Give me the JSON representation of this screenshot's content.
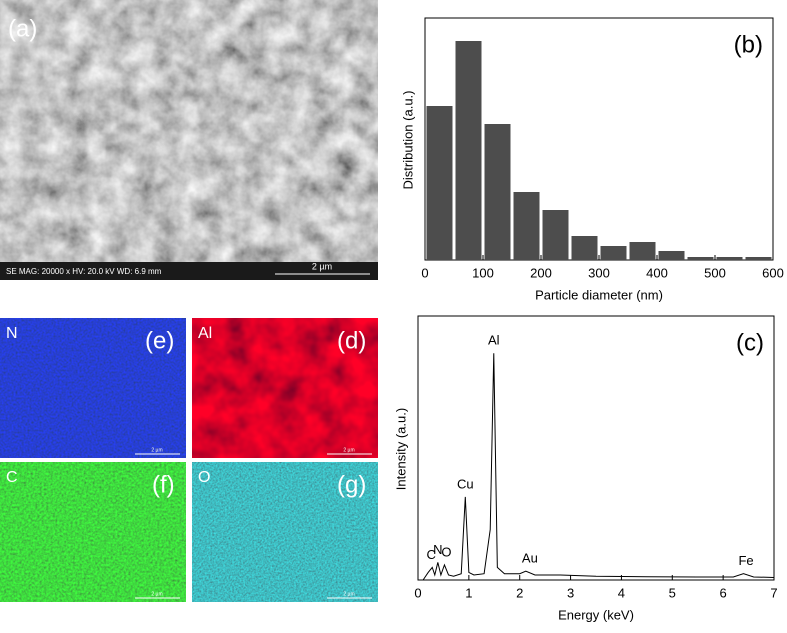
{
  "panels": [
    {
      "label": "(a)",
      "info": "SE  MAG: 20000 x  HV: 20.0 kV  WD: 6.9 mm",
      "scale": "2 µm"
    },
    {
      "label": "(e)",
      "element": "N",
      "scale": "2 µm"
    },
    {
      "label": "(d)",
      "element": "Al",
      "scale": "2 µm"
    },
    {
      "label": "(f)",
      "element": "C",
      "scale": "2 µm"
    },
    {
      "label": "(g)",
      "element": "O",
      "scale": "2 µm"
    }
  ],
  "chart_data": [
    {
      "type": "histogram",
      "panel_label": "(b)",
      "x_label": "Particle diameter (nm)",
      "y_label": "Distribution (a.u.)",
      "bins": [
        0,
        50,
        100,
        150,
        200,
        250,
        300,
        350,
        400,
        450,
        500,
        550,
        600
      ],
      "values": [
        154,
        219,
        136,
        68,
        50,
        24,
        14,
        18,
        9,
        3,
        3,
        3
      ],
      "color": "#4d4d4d",
      "xlim": [
        0,
        600
      ],
      "xticks": [
        0,
        100,
        200,
        300,
        400,
        500,
        600
      ],
      "ylim": [
        0,
        240
      ]
    },
    {
      "type": "line",
      "panel_label": "(c)",
      "x_label": "Energy (keV)",
      "y_label": "Intensity (a.u.)",
      "x": [
        0.1,
        0.2,
        0.28,
        0.33,
        0.39,
        0.45,
        0.52,
        0.6,
        0.7,
        0.85,
        0.93,
        1.0,
        1.1,
        1.3,
        1.42,
        1.49,
        1.56,
        1.7,
        2.0,
        2.12,
        2.3,
        2.8,
        3.5,
        4.5,
        5.5,
        6.2,
        6.4,
        6.6,
        7.0
      ],
      "values": [
        0,
        3,
        5,
        2,
        7,
        2,
        6,
        2,
        1.5,
        2.5,
        33,
        3,
        2,
        2.5,
        20,
        90,
        5,
        2.5,
        2.5,
        3.5,
        2,
        2,
        1.5,
        1.3,
        1.2,
        1.2,
        2.5,
        1.2,
        1
      ],
      "color": "#000000",
      "xlim": [
        0,
        7
      ],
      "xticks": [
        0,
        1,
        2,
        3,
        4,
        5,
        6,
        7
      ],
      "ylim": [
        0,
        100
      ],
      "annotations": [
        {
          "text": "C",
          "x": 0.26,
          "y": 5
        },
        {
          "text": "N",
          "x": 0.39,
          "y": 7
        },
        {
          "text": "O",
          "x": 0.56,
          "y": 6
        },
        {
          "text": "Cu",
          "x": 0.93,
          "y": 33
        },
        {
          "text": "Al",
          "x": 1.49,
          "y": 90
        },
        {
          "text": "Au",
          "x": 2.2,
          "y": 3.5
        },
        {
          "text": "Fe",
          "x": 6.45,
          "y": 2.5
        }
      ]
    }
  ]
}
